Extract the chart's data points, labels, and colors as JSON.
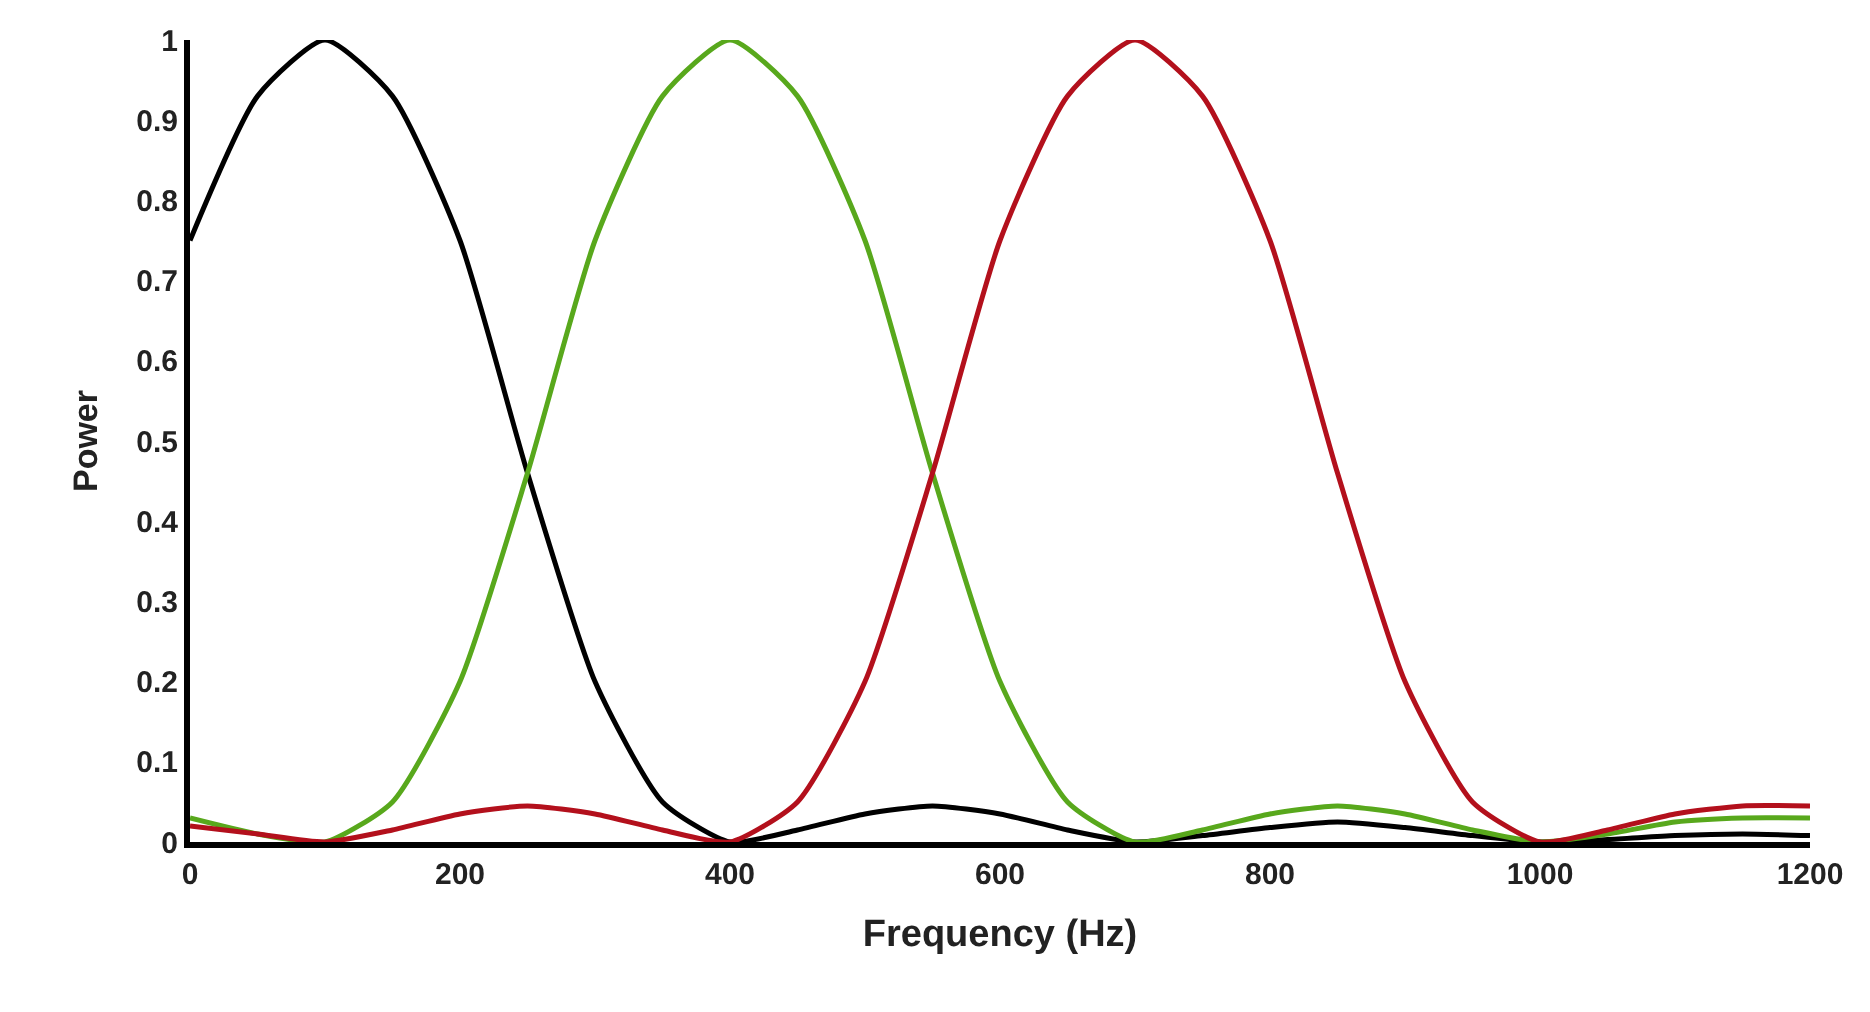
{
  "chart_data": {
    "type": "line",
    "xlabel": "Frequency (Hz)",
    "ylabel": "Power",
    "x": [
      0,
      50,
      100,
      150,
      200,
      250,
      300,
      350,
      400,
      450,
      500,
      550,
      600,
      650,
      700,
      750,
      800,
      850,
      900,
      950,
      1000,
      1050,
      1100,
      1150,
      1200
    ],
    "series": [
      {
        "color": "#000000",
        "values": [
          0.75,
          0.93,
          1,
          0.93,
          0.75,
          0.46,
          0.2,
          0.05,
          0,
          0.015,
          0.035,
          0.045,
          0.035,
          0.015,
          0,
          0.008,
          0.018,
          0.025,
          0.018,
          0.008,
          0,
          0.003,
          0.008,
          0.01,
          0.008
        ]
      },
      {
        "color": "#58a81c",
        "values": [
          0.03,
          0.01,
          0,
          0.05,
          0.2,
          0.46,
          0.75,
          0.93,
          1,
          0.93,
          0.75,
          0.46,
          0.2,
          0.05,
          0,
          0.015,
          0.035,
          0.045,
          0.035,
          0.015,
          0,
          0.01,
          0.025,
          0.03,
          0.03
        ]
      },
      {
        "color": "#b3101c",
        "values": [
          0.02,
          0.01,
          0,
          0.015,
          0.035,
          0.045,
          0.035,
          0.015,
          0,
          0.05,
          0.2,
          0.46,
          0.75,
          0.93,
          1,
          0.93,
          0.75,
          0.46,
          0.2,
          0.05,
          0,
          0.015,
          0.035,
          0.045,
          0.045
        ]
      }
    ],
    "xlim": [
      0,
      1200
    ],
    "xticks": [
      0,
      200,
      400,
      600,
      800,
      1000,
      1200
    ],
    "ylim": [
      0,
      1
    ],
    "yticks": [
      0,
      0.1,
      0.2,
      0.3,
      0.4,
      0.5,
      0.6,
      0.7,
      0.8,
      0.9,
      1
    ],
    "marker": "none",
    "line_style": "solid"
  }
}
